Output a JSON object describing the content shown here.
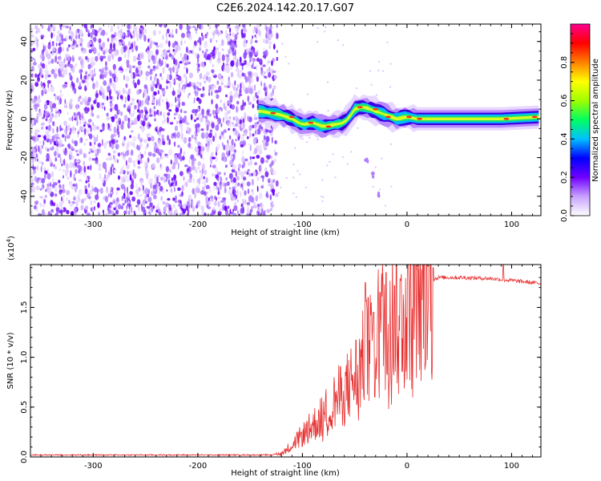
{
  "title": "C2E6.2024.142.20.17.G07",
  "chart_data": [
    {
      "type": "heatmap",
      "xlabel": "Height of straight line (km)",
      "ylabel": "Frequency (Hz)",
      "xlim": [
        -360,
        128
      ],
      "ylim": [
        -50,
        49
      ],
      "xticks": [
        -300,
        -200,
        -100,
        0,
        100
      ],
      "yticks": [
        -40,
        -20,
        0,
        20,
        40
      ],
      "colorbar": {
        "label": "Normalized spectral amplitude",
        "range": [
          0,
          1
        ],
        "ticks": [
          "0.0",
          "0.2",
          "0.4",
          "0.6",
          "0.8"
        ],
        "tick_values": [
          0,
          0.2,
          0.4,
          0.6,
          0.8
        ],
        "colors": [
          "#ffffff",
          "#c8a0ff",
          "#7000ff",
          "#0000ff",
          "#00c0ff",
          "#00ff60",
          "#a0ff00",
          "#ffff00",
          "#ff8000",
          "#ff0000",
          "#ff0090"
        ]
      },
      "noise_region": [
        -360,
        -130
      ],
      "ridge": [
        [
          -140,
          4
        ],
        [
          -130,
          3
        ],
        [
          -120,
          2
        ],
        [
          -110,
          0
        ],
        [
          -100,
          -3
        ],
        [
          -90,
          -2
        ],
        [
          -80,
          -4
        ],
        [
          -70,
          -3
        ],
        [
          -60,
          -2
        ],
        [
          -55,
          1
        ],
        [
          -50,
          5
        ],
        [
          -45,
          6
        ],
        [
          -40,
          6
        ],
        [
          -30,
          4
        ],
        [
          -20,
          2
        ],
        [
          -10,
          0
        ],
        [
          0,
          1
        ],
        [
          10,
          0
        ],
        [
          30,
          0
        ],
        [
          60,
          0
        ],
        [
          90,
          0
        ],
        [
          128,
          1
        ]
      ],
      "tail": [
        [
          -40,
          -20
        ],
        [
          -35,
          -28
        ],
        [
          -28,
          -38
        ]
      ]
    },
    {
      "type": "line",
      "xlabel": "Height of straight line (km)",
      "ylabel": "SNR (10 * v/v)",
      "y_multiplier": "(x10",
      "y_multiplier_exp": "4",
      "y_multiplier_close": ")",
      "xlim": [
        -360,
        128
      ],
      "ylim": [
        0,
        1.93
      ],
      "xticks": [
        -300,
        -200,
        -100,
        0,
        100
      ],
      "yticks": [
        "0.0",
        "0.5",
        "1.0",
        "1.5"
      ],
      "ytick_values": [
        0,
        0.5,
        1.0,
        1.5
      ],
      "color": "#e83030",
      "envelope": [
        [
          -360,
          0.02
        ],
        [
          -130,
          0.02
        ],
        [
          -120,
          0.04
        ],
        [
          -110,
          0.12
        ],
        [
          -100,
          0.22
        ],
        [
          -90,
          0.32
        ],
        [
          -80,
          0.42
        ],
        [
          -70,
          0.55
        ],
        [
          -60,
          0.65
        ],
        [
          -50,
          0.8
        ],
        [
          -40,
          1.0
        ],
        [
          -30,
          1.25
        ],
        [
          -20,
          1.4
        ],
        [
          -10,
          1.5
        ],
        [
          0,
          1.58
        ],
        [
          10,
          1.68
        ],
        [
          20,
          1.76
        ],
        [
          30,
          1.8
        ],
        [
          50,
          1.8
        ],
        [
          80,
          1.79
        ],
        [
          100,
          1.77
        ],
        [
          128,
          1.74
        ]
      ],
      "spikes": [
        [
          -40,
          1.75
        ],
        [
          -37,
          1.6
        ],
        [
          -32,
          1.45
        ],
        [
          -26,
          1.65
        ],
        [
          -20,
          1.85
        ],
        [
          -12,
          1.72
        ],
        [
          -6,
          1.77
        ],
        [
          10,
          1.88
        ],
        [
          25,
          1.9
        ],
        [
          92,
          1.93
        ]
      ]
    }
  ]
}
